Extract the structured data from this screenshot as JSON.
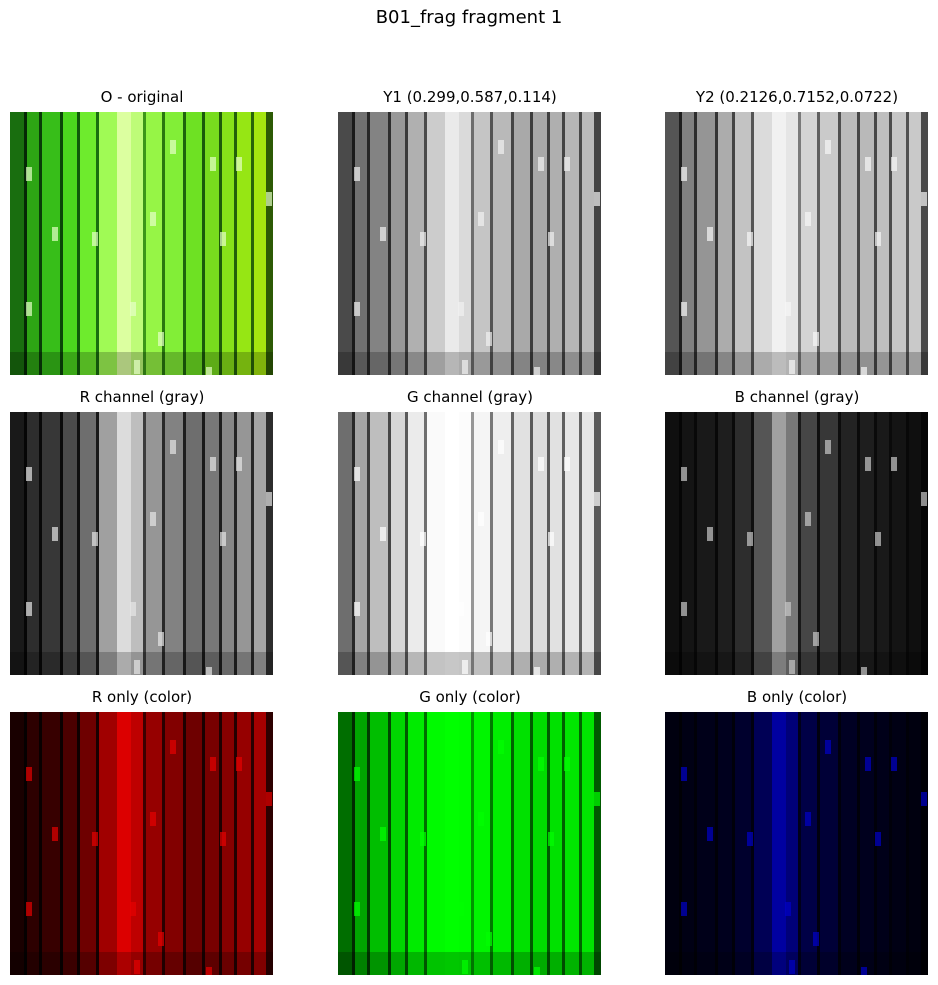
{
  "figure": {
    "title": "B01_frag fragment 1"
  },
  "panels": [
    {
      "title": "O - original",
      "mode": "original"
    },
    {
      "title": "Y1 (0.299,0.587,0.114)",
      "mode": "y1"
    },
    {
      "title": "Y2 (0.2126,0.7152,0.0722)",
      "mode": "y2"
    },
    {
      "title": "R channel (gray)",
      "mode": "r-gray"
    },
    {
      "title": "G channel (gray)",
      "mode": "g-gray"
    },
    {
      "title": "B channel (gray)",
      "mode": "b-gray"
    },
    {
      "title": "R only (color)",
      "mode": "r-color"
    },
    {
      "title": "G only (color)",
      "mode": "g-color"
    },
    {
      "title": "B only (color)",
      "mode": "b-color"
    }
  ]
}
